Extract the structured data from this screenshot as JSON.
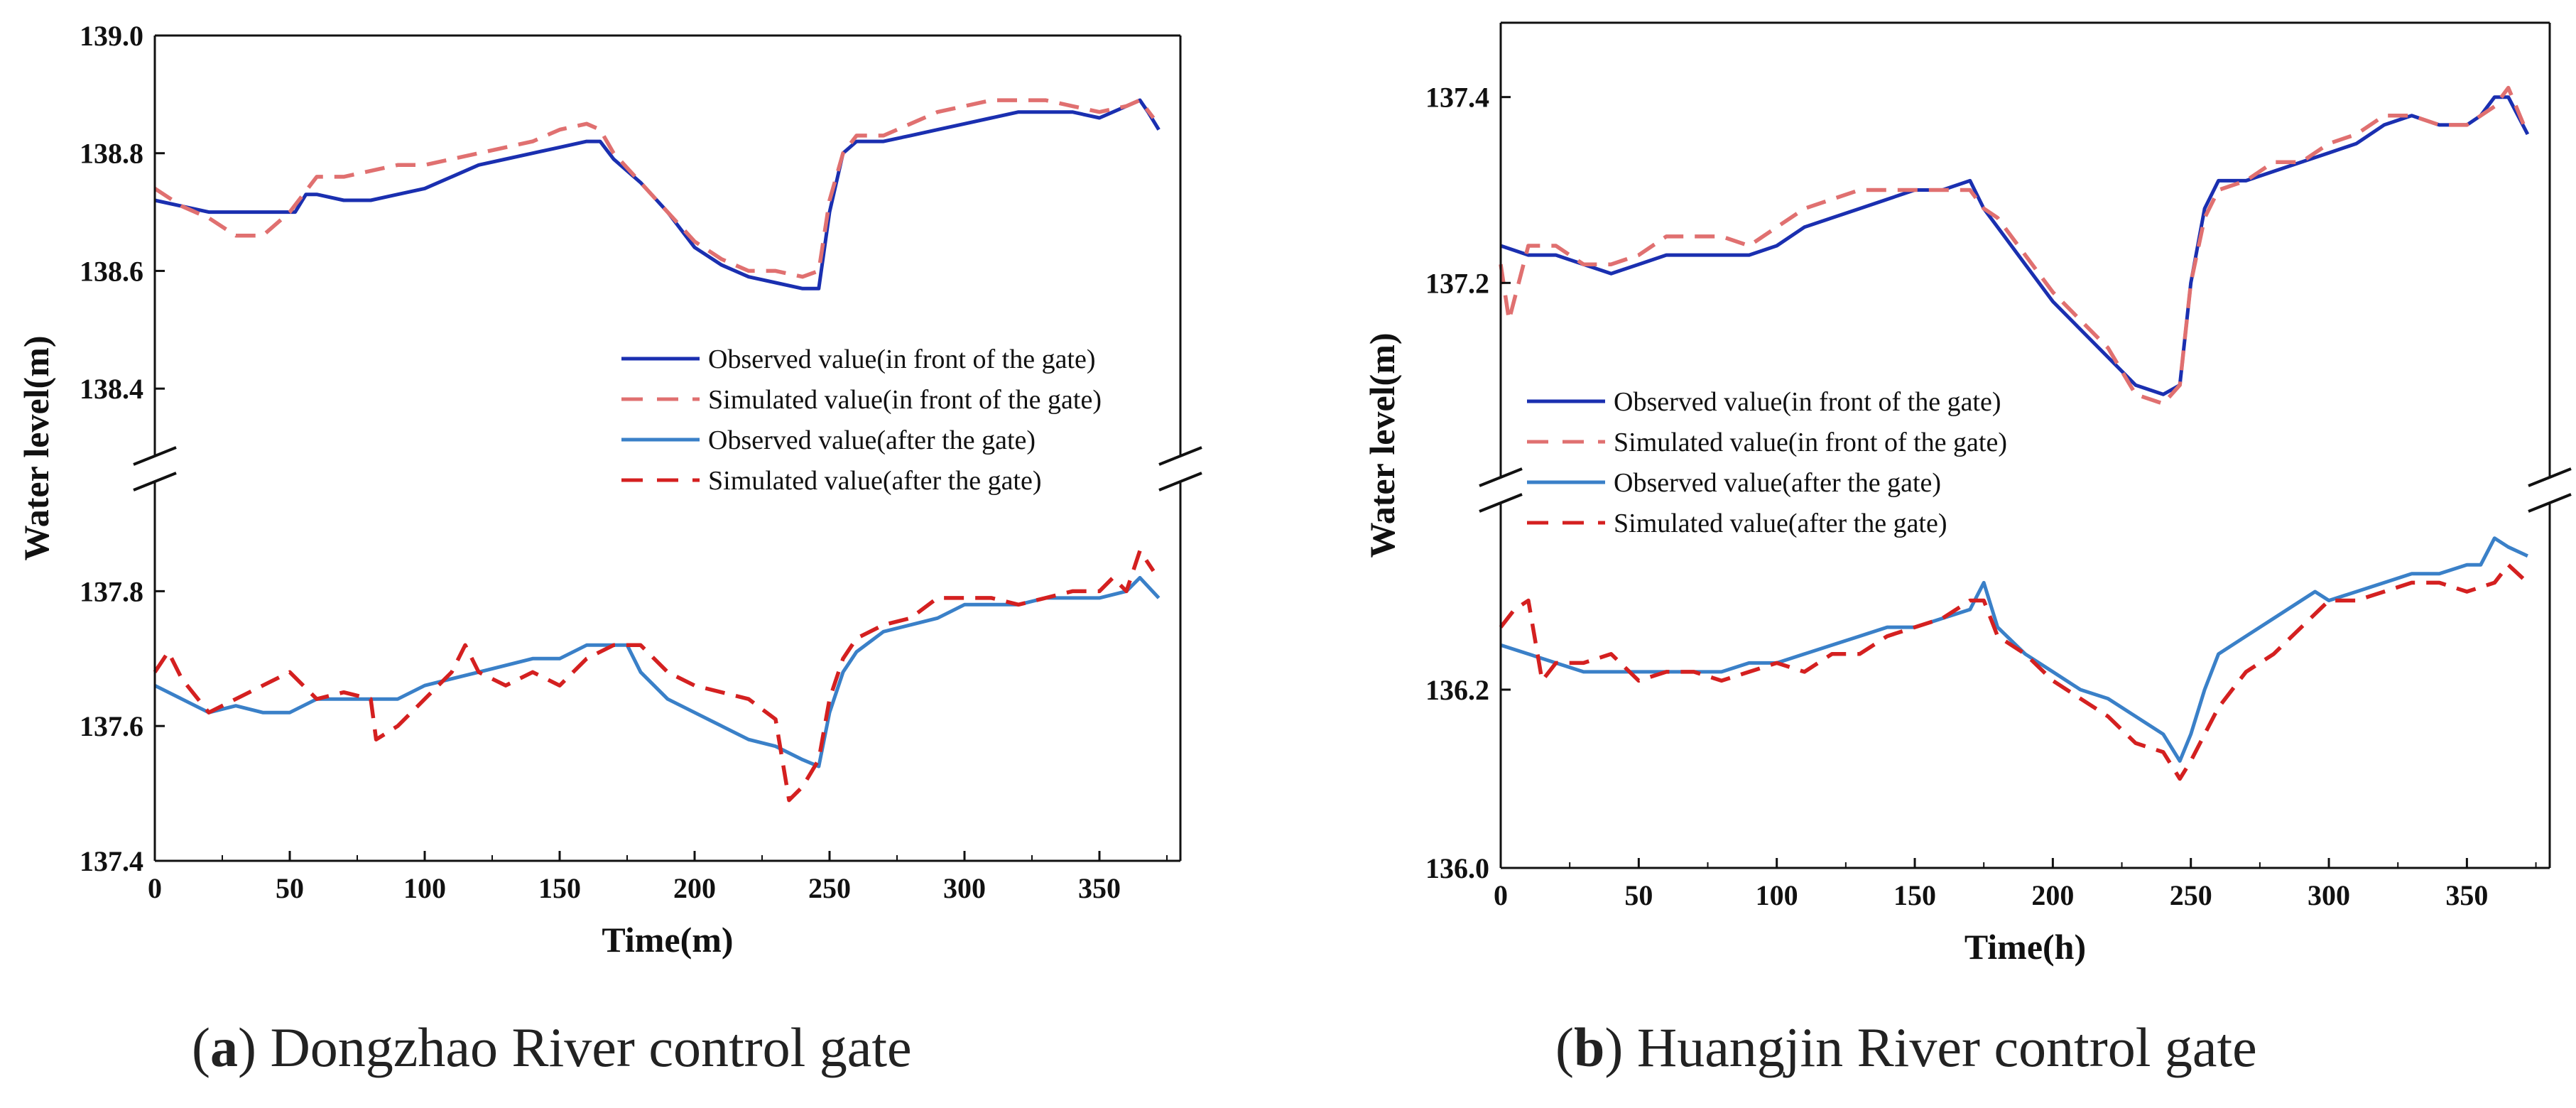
{
  "chart_data": [
    {
      "type": "line",
      "panel": "a",
      "ylabel": "Water level(m)",
      "xlabel": "Time(m)",
      "xlim": [
        0,
        380
      ],
      "xticks": [
        0,
        50,
        100,
        150,
        200,
        250,
        300,
        350
      ],
      "axis_break": true,
      "upper_ylim": [
        138.3,
        139.0
      ],
      "upper_yticks": [
        138.4,
        138.6,
        138.8,
        139.0
      ],
      "lower_ylim": [
        137.4,
        137.95
      ],
      "lower_yticks": [
        137.4,
        137.6,
        137.8
      ],
      "legend_position": "inside upper panel, lower-right",
      "series": [
        {
          "name": "Observed value(in front of the gate)",
          "panel": "upper",
          "color": "#1a2fb0",
          "style": "solid",
          "x": [
            0,
            10,
            20,
            30,
            40,
            52,
            56,
            60,
            70,
            80,
            90,
            100,
            110,
            120,
            130,
            140,
            150,
            160,
            165,
            170,
            180,
            190,
            200,
            210,
            220,
            230,
            240,
            246,
            250,
            255,
            260,
            265,
            270,
            280,
            290,
            300,
            310,
            320,
            330,
            340,
            350,
            360,
            365,
            368,
            372
          ],
          "y": [
            138.72,
            138.71,
            138.7,
            138.7,
            138.7,
            138.7,
            138.73,
            138.73,
            138.72,
            138.72,
            138.73,
            138.74,
            138.76,
            138.78,
            138.79,
            138.8,
            138.81,
            138.82,
            138.82,
            138.79,
            138.75,
            138.7,
            138.64,
            138.61,
            138.59,
            138.58,
            138.57,
            138.57,
            138.7,
            138.8,
            138.82,
            138.82,
            138.82,
            138.83,
            138.84,
            138.85,
            138.86,
            138.87,
            138.87,
            138.87,
            138.86,
            138.88,
            138.89,
            138.87,
            138.84
          ]
        },
        {
          "name": "Simulated value(in front of the gate)",
          "panel": "upper",
          "color": "#e07070",
          "style": "dashed",
          "x": [
            0,
            10,
            20,
            30,
            40,
            50,
            60,
            70,
            80,
            90,
            100,
            110,
            120,
            130,
            140,
            150,
            160,
            165,
            170,
            180,
            190,
            200,
            210,
            220,
            230,
            240,
            246,
            250,
            255,
            260,
            270,
            280,
            290,
            300,
            310,
            320,
            330,
            340,
            350,
            360,
            365,
            370
          ],
          "y": [
            138.74,
            138.71,
            138.69,
            138.66,
            138.66,
            138.7,
            138.76,
            138.76,
            138.77,
            138.78,
            138.78,
            138.79,
            138.8,
            138.81,
            138.82,
            138.84,
            138.85,
            138.84,
            138.8,
            138.75,
            138.7,
            138.65,
            138.62,
            138.6,
            138.6,
            138.59,
            138.6,
            138.72,
            138.8,
            138.83,
            138.83,
            138.85,
            138.87,
            138.88,
            138.89,
            138.89,
            138.89,
            138.88,
            138.87,
            138.88,
            138.89,
            138.86
          ]
        },
        {
          "name": "Observed value(after the gate)",
          "panel": "lower",
          "color": "#3a80c8",
          "style": "solid",
          "x": [
            0,
            10,
            20,
            30,
            40,
            50,
            60,
            70,
            80,
            90,
            100,
            110,
            120,
            130,
            140,
            150,
            160,
            170,
            175,
            180,
            190,
            200,
            210,
            220,
            230,
            240,
            246,
            250,
            255,
            260,
            270,
            280,
            290,
            300,
            310,
            320,
            330,
            340,
            350,
            360,
            365,
            372
          ],
          "y": [
            137.66,
            137.64,
            137.62,
            137.63,
            137.62,
            137.62,
            137.64,
            137.64,
            137.64,
            137.64,
            137.66,
            137.67,
            137.68,
            137.69,
            137.7,
            137.7,
            137.72,
            137.72,
            137.72,
            137.68,
            137.64,
            137.62,
            137.6,
            137.58,
            137.57,
            137.55,
            137.54,
            137.62,
            137.68,
            137.71,
            137.74,
            137.75,
            137.76,
            137.78,
            137.78,
            137.78,
            137.79,
            137.79,
            137.79,
            137.8,
            137.82,
            137.79
          ]
        },
        {
          "name": "Simulated value(after the gate)",
          "panel": "lower",
          "color": "#d42020",
          "style": "dashed",
          "x": [
            0,
            5,
            10,
            20,
            30,
            40,
            50,
            60,
            70,
            80,
            82,
            90,
            100,
            110,
            115,
            120,
            130,
            140,
            150,
            160,
            170,
            175,
            180,
            190,
            200,
            210,
            220,
            230,
            235,
            240,
            246,
            250,
            255,
            260,
            270,
            280,
            290,
            300,
            310,
            320,
            330,
            340,
            350,
            355,
            360,
            365,
            370
          ],
          "y": [
            137.68,
            137.71,
            137.67,
            137.62,
            137.64,
            137.66,
            137.68,
            137.64,
            137.65,
            137.64,
            137.58,
            137.6,
            137.64,
            137.68,
            137.72,
            137.68,
            137.66,
            137.68,
            137.66,
            137.7,
            137.72,
            137.72,
            137.72,
            137.68,
            137.66,
            137.65,
            137.64,
            137.61,
            137.49,
            137.51,
            137.55,
            137.64,
            137.7,
            137.73,
            137.75,
            137.76,
            137.79,
            137.79,
            137.79,
            137.78,
            137.79,
            137.8,
            137.8,
            137.82,
            137.8,
            137.86,
            137.83
          ]
        }
      ]
    },
    {
      "type": "line",
      "panel": "b",
      "ylabel": "Water level(m)",
      "xlabel": "Time(h)",
      "xlim": [
        0,
        380
      ],
      "xticks": [
        0,
        50,
        100,
        150,
        200,
        250,
        300,
        350
      ],
      "axis_break": true,
      "upper_ylim": [
        137.0,
        137.48
      ],
      "upper_yticks": [
        137.2,
        137.4
      ],
      "lower_ylim": [
        136.0,
        136.4
      ],
      "lower_yticks": [
        136.0,
        136.2
      ],
      "legend_position": "inside upper panel, lower-middle",
      "series": [
        {
          "name": "Observed value(in front of the gate)",
          "panel": "upper",
          "color": "#1a2fb0",
          "style": "solid",
          "x": [
            0,
            10,
            20,
            30,
            40,
            50,
            60,
            70,
            80,
            90,
            100,
            110,
            120,
            130,
            140,
            150,
            160,
            170,
            175,
            180,
            190,
            200,
            210,
            220,
            230,
            240,
            246,
            250,
            255,
            260,
            265,
            270,
            280,
            290,
            300,
            310,
            320,
            330,
            340,
            350,
            355,
            360,
            365,
            372
          ],
          "y": [
            137.24,
            137.23,
            137.23,
            137.22,
            137.21,
            137.22,
            137.23,
            137.23,
            137.23,
            137.23,
            137.24,
            137.26,
            137.27,
            137.28,
            137.29,
            137.3,
            137.3,
            137.31,
            137.28,
            137.26,
            137.22,
            137.18,
            137.15,
            137.12,
            137.09,
            137.08,
            137.09,
            137.2,
            137.28,
            137.31,
            137.31,
            137.31,
            137.32,
            137.33,
            137.34,
            137.35,
            137.37,
            137.38,
            137.37,
            137.37,
            137.38,
            137.4,
            137.4,
            137.36
          ]
        },
        {
          "name": "Simulated value(in front of the gate)",
          "panel": "upper",
          "color": "#e07070",
          "style": "dashed",
          "x": [
            0,
            3,
            10,
            20,
            30,
            40,
            50,
            60,
            70,
            80,
            90,
            100,
            110,
            120,
            130,
            140,
            150,
            160,
            170,
            175,
            180,
            190,
            200,
            210,
            220,
            230,
            240,
            246,
            250,
            255,
            260,
            270,
            280,
            290,
            300,
            310,
            320,
            330,
            340,
            350,
            360,
            365,
            372
          ],
          "y": [
            137.22,
            137.16,
            137.24,
            137.24,
            137.22,
            137.22,
            137.23,
            137.25,
            137.25,
            137.25,
            137.24,
            137.26,
            137.28,
            137.29,
            137.3,
            137.3,
            137.3,
            137.3,
            137.3,
            137.28,
            137.27,
            137.23,
            137.19,
            137.16,
            137.13,
            137.08,
            137.07,
            137.09,
            137.2,
            137.27,
            137.3,
            137.31,
            137.33,
            137.33,
            137.35,
            137.36,
            137.38,
            137.38,
            137.37,
            137.37,
            137.39,
            137.41,
            137.36
          ]
        },
        {
          "name": "Observed value(after the gate)",
          "panel": "lower",
          "color": "#3a80c8",
          "style": "solid",
          "x": [
            0,
            10,
            20,
            30,
            40,
            50,
            60,
            70,
            80,
            90,
            100,
            110,
            120,
            130,
            140,
            150,
            160,
            170,
            175,
            180,
            190,
            200,
            210,
            220,
            230,
            240,
            246,
            250,
            255,
            260,
            270,
            280,
            290,
            295,
            300,
            310,
            320,
            330,
            340,
            350,
            355,
            360,
            365,
            372
          ],
          "y": [
            136.25,
            136.24,
            136.23,
            136.22,
            136.22,
            136.22,
            136.22,
            136.22,
            136.22,
            136.23,
            136.23,
            136.24,
            136.25,
            136.26,
            136.27,
            136.27,
            136.28,
            136.29,
            136.32,
            136.27,
            136.24,
            136.22,
            136.2,
            136.19,
            136.17,
            136.15,
            136.12,
            136.15,
            136.2,
            136.24,
            136.26,
            136.28,
            136.3,
            136.31,
            136.3,
            136.31,
            136.32,
            136.33,
            136.33,
            136.34,
            136.34,
            136.37,
            136.36,
            136.35
          ]
        },
        {
          "name": "Simulated value(after the gate)",
          "panel": "lower",
          "color": "#d42020",
          "style": "dashed",
          "x": [
            0,
            5,
            10,
            15,
            20,
            30,
            40,
            50,
            60,
            70,
            80,
            90,
            100,
            110,
            120,
            130,
            140,
            150,
            160,
            170,
            175,
            180,
            190,
            200,
            210,
            220,
            230,
            240,
            246,
            250,
            255,
            260,
            270,
            280,
            290,
            300,
            310,
            320,
            330,
            340,
            350,
            360,
            365,
            372
          ],
          "y": [
            136.27,
            136.29,
            136.3,
            136.21,
            136.23,
            136.23,
            136.24,
            136.21,
            136.22,
            136.22,
            136.21,
            136.22,
            136.23,
            136.22,
            136.24,
            136.24,
            136.26,
            136.27,
            136.28,
            136.3,
            136.3,
            136.26,
            136.24,
            136.21,
            136.19,
            136.17,
            136.14,
            136.13,
            136.1,
            136.12,
            136.15,
            136.18,
            136.22,
            136.24,
            136.27,
            136.3,
            136.3,
            136.31,
            136.32,
            136.32,
            136.31,
            136.32,
            136.34,
            136.32
          ]
        }
      ]
    }
  ],
  "captions": [
    {
      "letter": "a",
      "text": " Dongzhao River control gate"
    },
    {
      "letter": "b",
      "text": " Huangjin River control gate"
    }
  ]
}
